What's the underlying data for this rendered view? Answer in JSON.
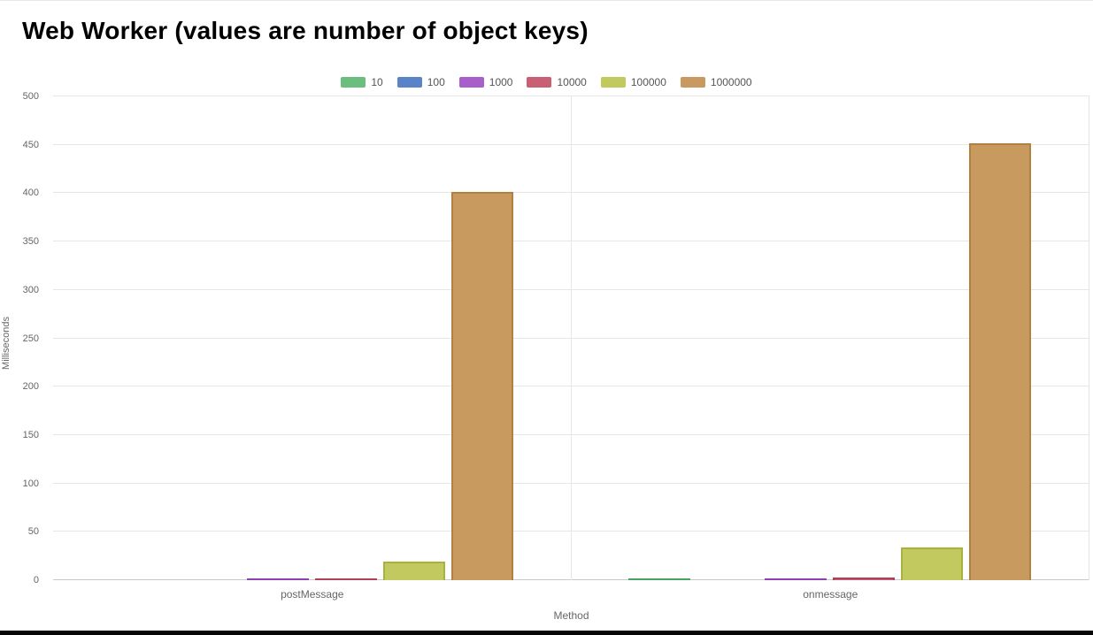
{
  "title": "Web Worker (values are number of object keys)",
  "chart_data": {
    "type": "bar",
    "title": "Web Worker (values are number of object keys)",
    "xlabel": "Method",
    "ylabel": "Milliseconds",
    "ylim": [
      0,
      500
    ],
    "yticks": [
      0,
      50,
      100,
      150,
      200,
      250,
      300,
      350,
      400,
      450,
      500
    ],
    "grid": true,
    "legend_position": "top",
    "categories": [
      "postMessage",
      "onmessage"
    ],
    "series": [
      {
        "name": "10",
        "fill": "#6abf7e",
        "border": "#47a561",
        "values": [
          0,
          2
        ]
      },
      {
        "name": "100",
        "fill": "#5b83c7",
        "border": "#3a66b0",
        "values": [
          0,
          0
        ]
      },
      {
        "name": "1000",
        "fill": "#a95fc9",
        "border": "#8e3fb2",
        "values": [
          1,
          1
        ]
      },
      {
        "name": "10000",
        "fill": "#c95f72",
        "border": "#b23f55",
        "values": [
          2,
          3
        ]
      },
      {
        "name": "100000",
        "fill": "#c1c95f",
        "border": "#a8b23f",
        "values": [
          19,
          34
        ]
      },
      {
        "name": "1000000",
        "fill": "#c99a5f",
        "border": "#b2813f",
        "values": [
          401,
          452
        ]
      }
    ]
  }
}
